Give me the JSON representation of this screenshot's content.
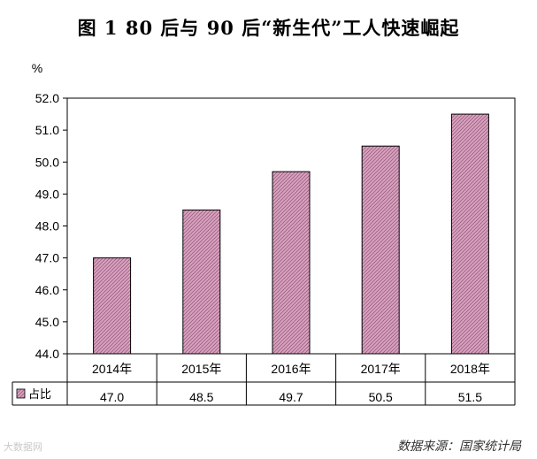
{
  "title": "图 1 80 后与 90 后“新生代”工人快速崛起",
  "source_note": "数据来源：国家统计局",
  "watermark": "大数据网",
  "chart_data": {
    "type": "bar",
    "title": "图 1 80 后与 90 后“新生代”工人快速崛起",
    "ylabel": "%",
    "xlabel": "",
    "categories": [
      "2014年",
      "2015年",
      "2016年",
      "2017年",
      "2018年"
    ],
    "series": [
      {
        "name": "占比",
        "values": [
          47.0,
          48.5,
          49.7,
          50.5,
          51.5
        ]
      }
    ],
    "table_values": [
      "47.0",
      "48.5",
      "49.7",
      "50.5",
      "51.5"
    ],
    "ylim": [
      44.0,
      52.0
    ],
    "yticks": [
      "44.0",
      "45.0",
      "46.0",
      "47.0",
      "48.0",
      "49.0",
      "50.0",
      "51.0",
      "52.0"
    ],
    "grid": false,
    "legend": "data-table-left",
    "bar_color": "#d9a3c0",
    "bar_pattern_color": "#8a4f70"
  }
}
